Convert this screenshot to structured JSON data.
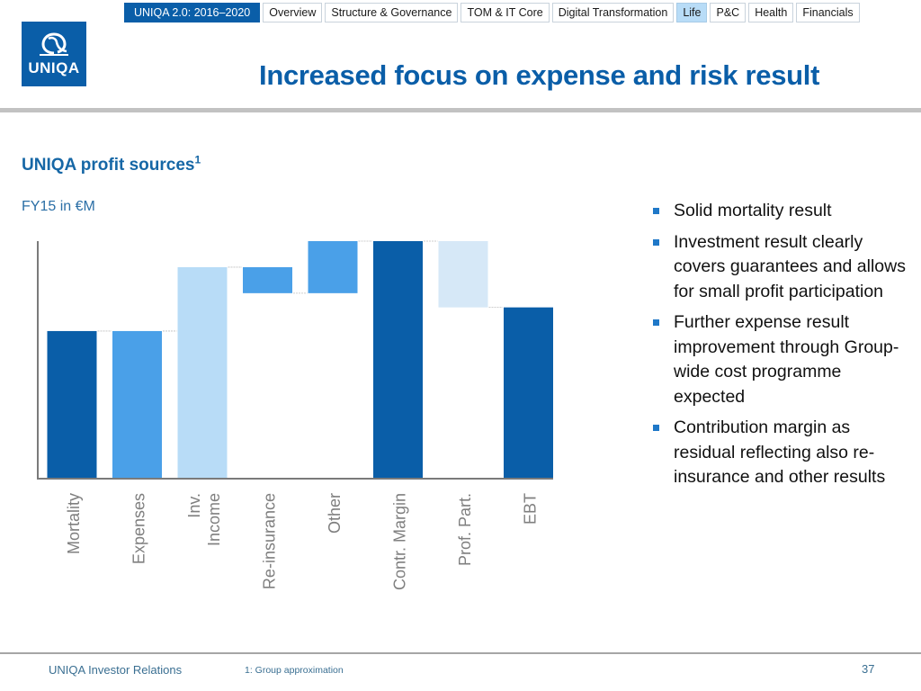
{
  "nav": {
    "tabs": [
      {
        "label": "UNIQA 2.0: 2016–2020",
        "state": "brand"
      },
      {
        "label": "Overview",
        "state": "normal"
      },
      {
        "label": "Structure & Governance",
        "state": "normal"
      },
      {
        "label": "TOM & IT Core",
        "state": "normal"
      },
      {
        "label": "Digital Transformation",
        "state": "normal"
      },
      {
        "label": "Life",
        "state": "active"
      },
      {
        "label": "P&C",
        "state": "normal"
      },
      {
        "label": "Health",
        "state": "normal"
      },
      {
        "label": "Financials",
        "state": "normal"
      }
    ]
  },
  "logo": {
    "text": "UNIQA",
    "icon": "uniqa-logo-icon"
  },
  "header": {
    "title": "Increased focus on expense and risk result"
  },
  "section": {
    "subtitle": "UNIQA profit sources",
    "footnote_marker": "1",
    "unit": "FY15 in €M"
  },
  "colors": {
    "brand": "#0a5ea8",
    "dark_blue": "#0a5ea8",
    "mid_blue": "#4aa0e8",
    "light_blue": "#b8dcf7",
    "pale_blue": "#d6e8f7",
    "bullet": "#1f78c8"
  },
  "chart_data": {
    "type": "bar",
    "subtype": "waterfall",
    "title": "UNIQA profit sources",
    "subtitle": "FY15 in €M",
    "xlabel": "",
    "ylabel": "",
    "note": "No value labels or y-axis ticks shown; values are relative estimates (Contr. Margin = 100).",
    "categories": [
      "Mortality",
      "Expenses",
      "Inv.\nIncome",
      "Re-insurance",
      "Other",
      "Contr. Margin",
      "Prof. Part.",
      "EBT"
    ],
    "bars": [
      {
        "category": "Mortality",
        "kind": "total",
        "start": 0,
        "end": 62,
        "color": "dark_blue"
      },
      {
        "category": "Expenses",
        "kind": "total",
        "start": 0,
        "end": 62,
        "color": "mid_blue"
      },
      {
        "category": "Inv.\nIncome",
        "kind": "total",
        "start": 0,
        "end": 89,
        "color": "light_blue"
      },
      {
        "category": "Re-insurance",
        "kind": "delta",
        "start": 89,
        "end": 78,
        "color": "mid_blue"
      },
      {
        "category": "Other",
        "kind": "delta",
        "start": 78,
        "end": 100,
        "color": "mid_blue"
      },
      {
        "category": "Contr. Margin",
        "kind": "total",
        "start": 0,
        "end": 100,
        "color": "dark_blue"
      },
      {
        "category": "Prof. Part.",
        "kind": "delta",
        "start": 100,
        "end": 72,
        "color": "pale_blue"
      },
      {
        "category": "EBT",
        "kind": "total",
        "start": 0,
        "end": 72,
        "color": "dark_blue"
      }
    ],
    "ylim": [
      0,
      100
    ],
    "grid": false,
    "legend": "none"
  },
  "bullets": [
    "Solid mortality result",
    "Investment result clearly covers guarantees and allows for small profit participation",
    "Further expense result improvement through Group-wide cost programme expected",
    "Contribution margin as residual reflecting also re-insurance and other results"
  ],
  "footer": {
    "left": "UNIQA Investor Relations",
    "footnote": "1: Group approximation",
    "page": "37"
  }
}
